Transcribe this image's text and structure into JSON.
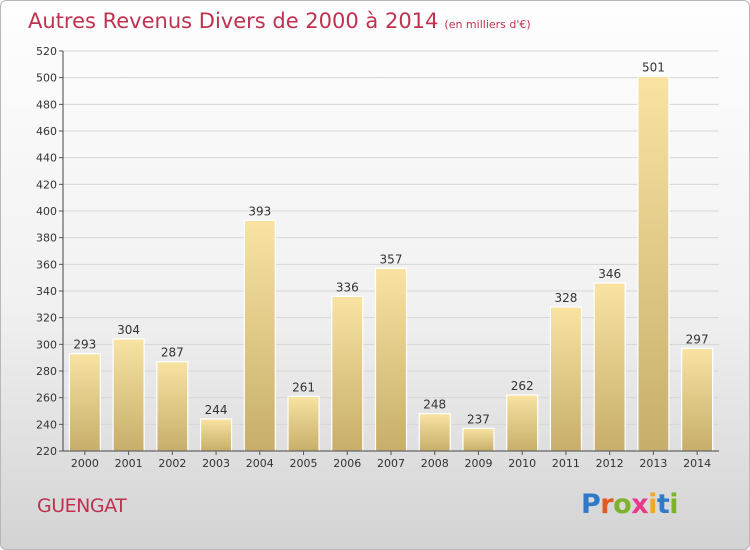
{
  "header": {
    "title": "Autres Revenus Divers de 2000 à 2014",
    "unit": "(en milliers d'€)"
  },
  "footer": {
    "city": "GUENGAT",
    "brand": "Proxiti"
  },
  "colors": {
    "title": "#c0314f",
    "bar_light": "#f8e3a3",
    "bar_dark": "#c7ae6a",
    "grid": "#d6d6d6",
    "brand": [
      "#2e79c8",
      "#e05b24",
      "#7cb32b",
      "#e8398b",
      "#f2a72a",
      "#2e79c8",
      "#7cb32b"
    ]
  },
  "chart_data": {
    "type": "bar",
    "title": "Autres Revenus Divers de 2000 à 2014",
    "subtitle": "(en milliers d'€)",
    "categories": [
      "2000",
      "2001",
      "2002",
      "2003",
      "2004",
      "2005",
      "2006",
      "2007",
      "2008",
      "2009",
      "2010",
      "2011",
      "2012",
      "2013",
      "2014"
    ],
    "values": [
      293,
      304,
      287,
      244,
      393,
      261,
      336,
      357,
      248,
      237,
      262,
      328,
      346,
      501,
      297
    ],
    "ylim": [
      220,
      520
    ],
    "yticks": [
      220,
      240,
      260,
      280,
      300,
      320,
      340,
      360,
      380,
      400,
      420,
      440,
      460,
      480,
      500,
      520
    ],
    "grid": true,
    "xlabel": "",
    "ylabel": ""
  }
}
